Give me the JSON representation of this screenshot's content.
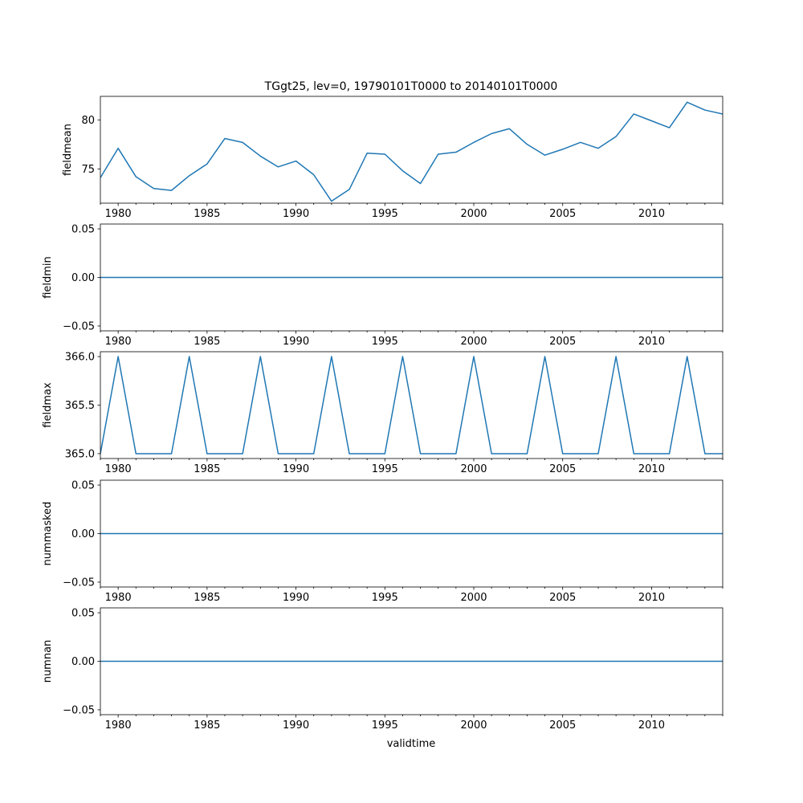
{
  "figure": {
    "title": "TGgt25, lev=0, 19790101T0000 to 20140101T0000",
    "xlabel": "validtime"
  },
  "line_color": "#1f77b4",
  "chart_data": [
    {
      "type": "line",
      "ylabel": "fieldmean",
      "x": [
        1979,
        1980,
        1981,
        1982,
        1983,
        1984,
        1985,
        1986,
        1987,
        1988,
        1989,
        1990,
        1991,
        1992,
        1993,
        1994,
        1995,
        1996,
        1997,
        1998,
        1999,
        2000,
        2001,
        2002,
        2003,
        2004,
        2005,
        2006,
        2007,
        2008,
        2009,
        2010,
        2011,
        2012,
        2013,
        2014
      ],
      "values": [
        74.1,
        77.1,
        74.2,
        73.0,
        72.8,
        74.3,
        75.5,
        78.1,
        77.7,
        76.3,
        75.2,
        75.8,
        74.4,
        71.7,
        72.9,
        76.6,
        76.5,
        74.8,
        73.5,
        76.5,
        76.7,
        77.7,
        78.6,
        79.1,
        77.5,
        76.4,
        77.0,
        77.7,
        77.1,
        78.3,
        80.6,
        79.9,
        79.2,
        81.8,
        81.0,
        80.6
      ],
      "xlim": [
        1979,
        2014
      ],
      "ylim": [
        71.5,
        82.4
      ],
      "yticks": [
        75,
        80
      ],
      "ytick_labels": [
        "75",
        "80"
      ],
      "xticks": [
        1980,
        1985,
        1990,
        1995,
        2000,
        2005,
        2010
      ],
      "xtick_labels": [
        "1980",
        "1985",
        "1990",
        "1995",
        "2000",
        "2005",
        "2010"
      ]
    },
    {
      "type": "line",
      "ylabel": "fieldmin",
      "x": [
        1979,
        2014
      ],
      "values": [
        0.0,
        0.0
      ],
      "xlim": [
        1979,
        2014
      ],
      "ylim": [
        -0.055,
        0.055
      ],
      "yticks": [
        -0.05,
        0.0,
        0.05
      ],
      "ytick_labels": [
        "−0.05",
        "0.00",
        "0.05"
      ],
      "xticks": [
        1980,
        1985,
        1990,
        1995,
        2000,
        2005,
        2010
      ],
      "xtick_labels": [
        "1980",
        "1985",
        "1990",
        "1995",
        "2000",
        "2005",
        "2010"
      ]
    },
    {
      "type": "line",
      "ylabel": "fieldmax",
      "x": [
        1979,
        1980,
        1981,
        1982,
        1983,
        1984,
        1985,
        1986,
        1987,
        1988,
        1989,
        1990,
        1991,
        1992,
        1993,
        1994,
        1995,
        1996,
        1997,
        1998,
        1999,
        2000,
        2001,
        2002,
        2003,
        2004,
        2005,
        2006,
        2007,
        2008,
        2009,
        2010,
        2011,
        2012,
        2013,
        2014
      ],
      "values": [
        365,
        366,
        365,
        365,
        365,
        366,
        365,
        365,
        365,
        366,
        365,
        365,
        365,
        366,
        365,
        365,
        365,
        366,
        365,
        365,
        365,
        366,
        365,
        365,
        365,
        366,
        365,
        365,
        365,
        366,
        365,
        365,
        365,
        366,
        365,
        365
      ],
      "xlim": [
        1979,
        2014
      ],
      "ylim": [
        364.95,
        366.05
      ],
      "yticks": [
        365.0,
        365.5,
        366.0
      ],
      "ytick_labels": [
        "365.0",
        "365.5",
        "366.0"
      ],
      "xticks": [
        1980,
        1985,
        1990,
        1995,
        2000,
        2005,
        2010
      ],
      "xtick_labels": [
        "1980",
        "1985",
        "1990",
        "1995",
        "2000",
        "2005",
        "2010"
      ]
    },
    {
      "type": "line",
      "ylabel": "nummasked",
      "x": [
        1979,
        2014
      ],
      "values": [
        0.0,
        0.0
      ],
      "xlim": [
        1979,
        2014
      ],
      "ylim": [
        -0.055,
        0.055
      ],
      "yticks": [
        -0.05,
        0.0,
        0.05
      ],
      "ytick_labels": [
        "−0.05",
        "0.00",
        "0.05"
      ],
      "xticks": [
        1980,
        1985,
        1990,
        1995,
        2000,
        2005,
        2010
      ],
      "xtick_labels": [
        "1980",
        "1985",
        "1990",
        "1995",
        "2000",
        "2005",
        "2010"
      ]
    },
    {
      "type": "line",
      "ylabel": "numnan",
      "x": [
        1979,
        2014
      ],
      "values": [
        0.0,
        0.0
      ],
      "xlim": [
        1979,
        2014
      ],
      "ylim": [
        -0.055,
        0.055
      ],
      "yticks": [
        -0.05,
        0.0,
        0.05
      ],
      "ytick_labels": [
        "−0.05",
        "0.00",
        "0.05"
      ],
      "xticks": [
        1980,
        1985,
        1990,
        1995,
        2000,
        2005,
        2010
      ],
      "xtick_labels": [
        "1980",
        "1985",
        "1990",
        "1995",
        "2000",
        "2005",
        "2010"
      ]
    }
  ]
}
